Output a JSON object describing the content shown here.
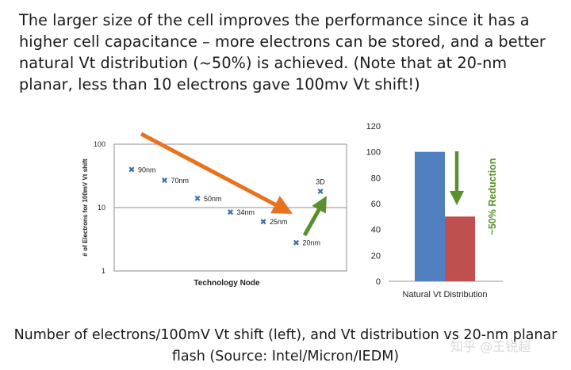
{
  "intro_text": "The larger size of the cell improves the performance since it has a higher cell capacitance – more electrons can be stored, and a better natural Vt distribution (~50%) is achieved. (Note that at 20-nm planar, less than 10 electrons gave 100mv Vt shift!)",
  "caption": "Number of electrons/100mV Vt shift (left), and Vt distribution vs 20-nm planar flash   (Source: Intel/Micron/IEDM)",
  "watermark": "知乎 @王锐超",
  "chart_data": [
    {
      "type": "scatter",
      "xlabel": "Technology Node",
      "ylabel": "# of Electrons for 100mV Vt shift",
      "yscale": "log",
      "ylim": [
        1,
        100
      ],
      "yticks": [
        "1",
        "10",
        "100"
      ],
      "grid": true,
      "points": [
        {
          "label": "90nm",
          "y": 40
        },
        {
          "label": "70nm",
          "y": 27
        },
        {
          "label": "50nm",
          "y": 14
        },
        {
          "label": "34nm",
          "y": 8.5
        },
        {
          "label": "25nm",
          "y": 6
        },
        {
          "label": "20nm",
          "y": 2.8
        },
        {
          "label": "3D",
          "y": 18
        }
      ],
      "colors": {
        "marker": "#3b6ea8",
        "trend_arrow": "#e8731e",
        "improve_arrow": "#5a8f2e"
      }
    },
    {
      "type": "bar",
      "xlabel": "Natural Vt Distribution",
      "ylim": [
        0,
        120
      ],
      "yticks": [
        "0",
        "20",
        "40",
        "60",
        "80",
        "100",
        "120"
      ],
      "series": [
        {
          "values": [
            100
          ],
          "color": "#4f7fbf"
        },
        {
          "values": [
            50
          ],
          "color": "#c0504d"
        }
      ],
      "annotation": "~50% Reduction",
      "colors": {
        "arrow": "#5a8f2e"
      }
    }
  ]
}
